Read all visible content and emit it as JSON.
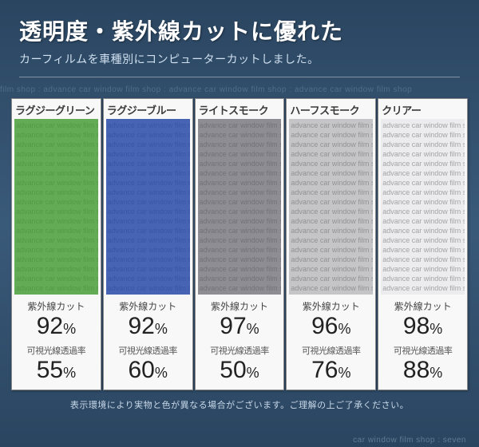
{
  "header": {
    "title": "透明度・紫外線カットに優れた",
    "subtitle": "カーフィルムを車種別にコンピューターカットしました。"
  },
  "bg_text": "film shop : advance car window film shop : advance car window film shop : advance car window film shop",
  "swatch_text_line": "advance car window film shop : advance car window film shop",
  "cards": [
    {
      "label": "ラグジーグリーン",
      "color": "#4a9d3a",
      "opacity": 0.85,
      "uv_label": "紫外線カット",
      "uv_value": "92",
      "vlt_label": "可視光線透過率",
      "vlt_value": "55"
    },
    {
      "label": "ラグジーブルー",
      "color": "#2e4da8",
      "opacity": 0.88,
      "uv_label": "紫外線カット",
      "uv_value": "92",
      "vlt_label": "可視光線透過率",
      "vlt_value": "60"
    },
    {
      "label": "ライトスモーク",
      "color": "#6a6a72",
      "opacity": 0.75,
      "uv_label": "紫外線カット",
      "uv_value": "97",
      "vlt_label": "可視光線透過率",
      "vlt_value": "50"
    },
    {
      "label": "ハーフスモーク",
      "color": "#9a9aa0",
      "opacity": 0.55,
      "uv_label": "紫外線カット",
      "uv_value": "96",
      "vlt_label": "可視光線透過率",
      "vlt_value": "76"
    },
    {
      "label": "クリアー",
      "color": "#d8d8dc",
      "opacity": 0.35,
      "uv_label": "紫外線カット",
      "uv_value": "98",
      "vlt_label": "可視光線透過率",
      "vlt_value": "88"
    }
  ],
  "note": "表示環境により実物と色が異なる場合がございます。ご理解の上ご了承ください。",
  "footer": "car window film shop  :  seven"
}
